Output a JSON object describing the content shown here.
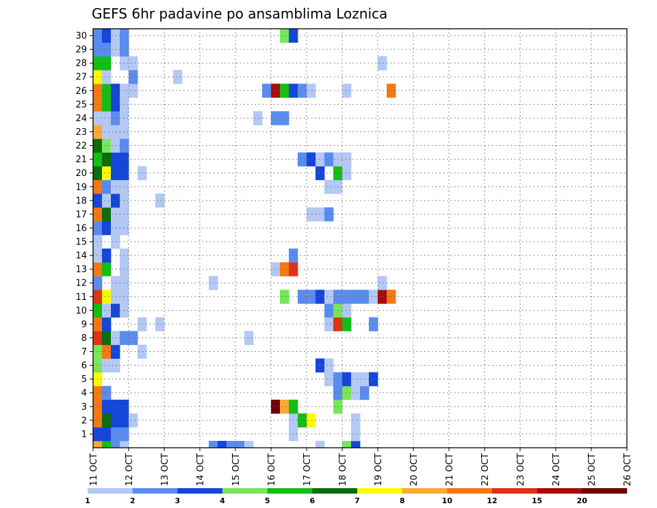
{
  "chart_data": {
    "type": "heatmap",
    "title": "GEFS 6hr padavine po ansamblima Loznica",
    "y_ticks": [
      "1",
      "2",
      "3",
      "4",
      "5",
      "6",
      "7",
      "8",
      "9",
      "10",
      "11",
      "12",
      "13",
      "14",
      "15",
      "16",
      "17",
      "18",
      "19",
      "20",
      "21",
      "22",
      "23",
      "24",
      "25",
      "26",
      "27",
      "28",
      "29",
      "30"
    ],
    "x_ticks": [
      "11 OCT",
      "12 OCT",
      "13 OCT",
      "14 OCT",
      "15 OCT",
      "16 OCT",
      "17 OCT",
      "18 OCT",
      "19 OCT",
      "20 OCT",
      "21 OCT",
      "22 OCT",
      "23 OCT",
      "24 OCT",
      "25 OCT",
      "26 OCT"
    ],
    "x_range": [
      "11 OCT 00Z",
      "26 OCT 00Z"
    ],
    "y_range": [
      0,
      30
    ],
    "grid": true,
    "colorbar": {
      "labels": [
        "1",
        "2",
        "3",
        "4",
        "5",
        "6",
        "7",
        "8",
        "10",
        "12",
        "15",
        "20"
      ],
      "colors": [
        "#b4c8f5",
        "#5a8cf0",
        "#1446dc",
        "#78e65a",
        "#14be14",
        "#0a6e0a",
        "#fafa00",
        "#faaa32",
        "#f57814",
        "#e13214",
        "#aa0a0a",
        "#6e0000"
      ]
    },
    "cells": [
      [
        0,
        0,
        7
      ],
      [
        0,
        1,
        4
      ],
      [
        0,
        2,
        1
      ],
      [
        0,
        3,
        0
      ],
      [
        0,
        13,
        1
      ],
      [
        0,
        14,
        2
      ],
      [
        0,
        15,
        1
      ],
      [
        0,
        16,
        1
      ],
      [
        0,
        17,
        0
      ],
      [
        0,
        25,
        0
      ],
      [
        0,
        28,
        3
      ],
      [
        0,
        29,
        2
      ],
      [
        1,
        0,
        2
      ],
      [
        1,
        1,
        2
      ],
      [
        1,
        2,
        1
      ],
      [
        1,
        3,
        1
      ],
      [
        1,
        22,
        0
      ],
      [
        1,
        29,
        0
      ],
      [
        2,
        0,
        8
      ],
      [
        2,
        1,
        5
      ],
      [
        2,
        2,
        2
      ],
      [
        2,
        3,
        2
      ],
      [
        2,
        4,
        0
      ],
      [
        2,
        22,
        0
      ],
      [
        2,
        23,
        4
      ],
      [
        2,
        24,
        6
      ],
      [
        2,
        29,
        0
      ],
      [
        3,
        0,
        8
      ],
      [
        3,
        1,
        2
      ],
      [
        3,
        2,
        2
      ],
      [
        3,
        3,
        2
      ],
      [
        3,
        20,
        11
      ],
      [
        3,
        21,
        7
      ],
      [
        3,
        22,
        4
      ],
      [
        3,
        27,
        3
      ],
      [
        4,
        0,
        8
      ],
      [
        4,
        1,
        1
      ],
      [
        4,
        27,
        1
      ],
      [
        4,
        28,
        3
      ],
      [
        4,
        29,
        0
      ],
      [
        4,
        30,
        1
      ],
      [
        5,
        0,
        6
      ],
      [
        5,
        26,
        0
      ],
      [
        5,
        27,
        1
      ],
      [
        5,
        28,
        2
      ],
      [
        5,
        29,
        0
      ],
      [
        5,
        30,
        0
      ],
      [
        5,
        31,
        2
      ],
      [
        6,
        0,
        3
      ],
      [
        6,
        1,
        0
      ],
      [
        6,
        2,
        0
      ],
      [
        6,
        25,
        2
      ],
      [
        6,
        26,
        0
      ],
      [
        7,
        0,
        3
      ],
      [
        7,
        1,
        8
      ],
      [
        7,
        2,
        2
      ],
      [
        7,
        5,
        0
      ],
      [
        8,
        0,
        9
      ],
      [
        8,
        1,
        5
      ],
      [
        8,
        2,
        0
      ],
      [
        8,
        3,
        1
      ],
      [
        8,
        4,
        1
      ],
      [
        8,
        17,
        0
      ],
      [
        9,
        0,
        8
      ],
      [
        9,
        1,
        2
      ],
      [
        9,
        5,
        0
      ],
      [
        9,
        7,
        0
      ],
      [
        9,
        26,
        0
      ],
      [
        9,
        27,
        9
      ],
      [
        9,
        28,
        4
      ],
      [
        9,
        31,
        1
      ],
      [
        10,
        0,
        4
      ],
      [
        10,
        1,
        0
      ],
      [
        10,
        2,
        2
      ],
      [
        10,
        3,
        0
      ],
      [
        10,
        26,
        1
      ],
      [
        10,
        27,
        3
      ],
      [
        10,
        28,
        0
      ],
      [
        11,
        0,
        9
      ],
      [
        11,
        1,
        6
      ],
      [
        11,
        2,
        0
      ],
      [
        11,
        3,
        0
      ],
      [
        11,
        21,
        3
      ],
      [
        11,
        23,
        1
      ],
      [
        11,
        24,
        1
      ],
      [
        11,
        25,
        2
      ],
      [
        11,
        26,
        0
      ],
      [
        11,
        27,
        1
      ],
      [
        11,
        28,
        1
      ],
      [
        11,
        29,
        1
      ],
      [
        11,
        30,
        1
      ],
      [
        11,
        31,
        0
      ],
      [
        11,
        32,
        10
      ],
      [
        11,
        33,
        8
      ],
      [
        12,
        0,
        1
      ],
      [
        12,
        2,
        0
      ],
      [
        12,
        3,
        0
      ],
      [
        12,
        13,
        0
      ],
      [
        12,
        32,
        0
      ],
      [
        13,
        0,
        8
      ],
      [
        13,
        1,
        4
      ],
      [
        13,
        3,
        0
      ],
      [
        13,
        20,
        0
      ],
      [
        13,
        21,
        8
      ],
      [
        13,
        22,
        9
      ],
      [
        14,
        0,
        0
      ],
      [
        14,
        1,
        2
      ],
      [
        14,
        3,
        0
      ],
      [
        14,
        22,
        1
      ],
      [
        15,
        0,
        0
      ],
      [
        15,
        2,
        0
      ],
      [
        16,
        0,
        1
      ],
      [
        16,
        1,
        2
      ],
      [
        16,
        2,
        0
      ],
      [
        16,
        3,
        0
      ],
      [
        17,
        0,
        8
      ],
      [
        17,
        1,
        5
      ],
      [
        17,
        2,
        0
      ],
      [
        17,
        3,
        0
      ],
      [
        17,
        24,
        0
      ],
      [
        17,
        25,
        0
      ],
      [
        17,
        26,
        1
      ],
      [
        18,
        0,
        2
      ],
      [
        18,
        1,
        0
      ],
      [
        18,
        2,
        2
      ],
      [
        18,
        3,
        0
      ],
      [
        18,
        7,
        0
      ],
      [
        19,
        0,
        8
      ],
      [
        19,
        1,
        1
      ],
      [
        19,
        2,
        0
      ],
      [
        19,
        3,
        0
      ],
      [
        19,
        26,
        0
      ],
      [
        19,
        27,
        0
      ],
      [
        20,
        0,
        5
      ],
      [
        20,
        1,
        6
      ],
      [
        20,
        2,
        2
      ],
      [
        20,
        3,
        2
      ],
      [
        20,
        5,
        0
      ],
      [
        20,
        25,
        2
      ],
      [
        20,
        27,
        4
      ],
      [
        20,
        28,
        0
      ],
      [
        21,
        0,
        4
      ],
      [
        21,
        1,
        5
      ],
      [
        21,
        2,
        2
      ],
      [
        21,
        3,
        2
      ],
      [
        21,
        23,
        1
      ],
      [
        21,
        24,
        2
      ],
      [
        21,
        25,
        0
      ],
      [
        21,
        26,
        1
      ],
      [
        21,
        27,
        0
      ],
      [
        21,
        28,
        0
      ],
      [
        22,
        0,
        5
      ],
      [
        22,
        1,
        3
      ],
      [
        22,
        2,
        0
      ],
      [
        22,
        3,
        1
      ],
      [
        23,
        0,
        7
      ],
      [
        23,
        1,
        0
      ],
      [
        23,
        2,
        0
      ],
      [
        23,
        3,
        0
      ],
      [
        24,
        0,
        0
      ],
      [
        24,
        1,
        0
      ],
      [
        24,
        2,
        1
      ],
      [
        24,
        3,
        0
      ],
      [
        24,
        18,
        0
      ],
      [
        24,
        20,
        1
      ],
      [
        24,
        21,
        1
      ],
      [
        25,
        0,
        8
      ],
      [
        25,
        1,
        4
      ],
      [
        25,
        2,
        2
      ],
      [
        25,
        3,
        0
      ],
      [
        26,
        0,
        8
      ],
      [
        26,
        1,
        4
      ],
      [
        26,
        2,
        2
      ],
      [
        26,
        3,
        0
      ],
      [
        26,
        4,
        0
      ],
      [
        26,
        19,
        1
      ],
      [
        26,
        20,
        10
      ],
      [
        26,
        21,
        4
      ],
      [
        26,
        22,
        2
      ],
      [
        26,
        23,
        1
      ],
      [
        26,
        24,
        0
      ],
      [
        26,
        28,
        0
      ],
      [
        26,
        33,
        8
      ],
      [
        27,
        0,
        6
      ],
      [
        27,
        1,
        0
      ],
      [
        27,
        4,
        1
      ],
      [
        27,
        9,
        0
      ],
      [
        28,
        0,
        4
      ],
      [
        28,
        1,
        4
      ],
      [
        28,
        3,
        0
      ],
      [
        28,
        4,
        0
      ],
      [
        28,
        32,
        0
      ],
      [
        29,
        0,
        1
      ],
      [
        29,
        1,
        1
      ],
      [
        29,
        2,
        0
      ],
      [
        29,
        3,
        1
      ],
      [
        30,
        0,
        1
      ],
      [
        30,
        1,
        2
      ],
      [
        30,
        2,
        0
      ],
      [
        30,
        3,
        1
      ],
      [
        30,
        21,
        3
      ],
      [
        30,
        22,
        2
      ]
    ]
  }
}
